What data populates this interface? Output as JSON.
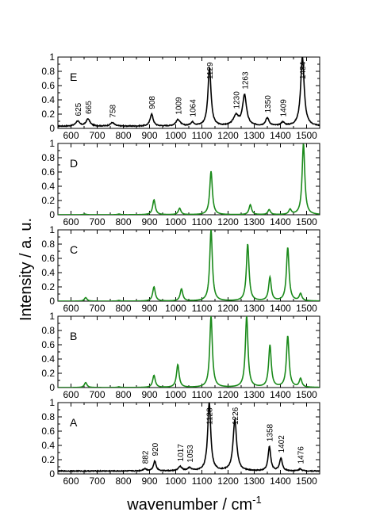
{
  "chart_data": {
    "type": "line",
    "xlabel": "wavenumber / cm",
    "xlabel_superscript": "-1",
    "ylabel": "Intensity / a. u.",
    "xlim": [
      550,
      1550
    ],
    "ylim": [
      0,
      1
    ],
    "x_ticks": [
      600,
      700,
      800,
      900,
      1000,
      1100,
      1200,
      1300,
      1400,
      1500
    ],
    "y_ticks": [
      0,
      0.2,
      0.4,
      0.6,
      0.8,
      1
    ],
    "y_tick_labels": [
      "0",
      "0.2",
      "0.4",
      "0.6",
      "0.8",
      "1"
    ],
    "panels": [
      {
        "label": "E",
        "color": "#000000",
        "baseline": 0.03,
        "noise": 0.006,
        "peaks": [
          {
            "x": 625,
            "h": 0.07,
            "w": 9
          },
          {
            "x": 665,
            "h": 0.1,
            "w": 9
          },
          {
            "x": 758,
            "h": 0.05,
            "w": 9
          },
          {
            "x": 908,
            "h": 0.17,
            "w": 7
          },
          {
            "x": 1009,
            "h": 0.09,
            "w": 10
          },
          {
            "x": 1064,
            "h": 0.05,
            "w": 8
          },
          {
            "x": 1129,
            "h": 0.82,
            "w": 7
          },
          {
            "x": 1230,
            "h": 0.14,
            "w": 12
          },
          {
            "x": 1263,
            "h": 0.43,
            "w": 9
          },
          {
            "x": 1350,
            "h": 0.11,
            "w": 8
          },
          {
            "x": 1409,
            "h": 0.05,
            "w": 8
          },
          {
            "x": 1484,
            "h": 0.97,
            "w": 8
          }
        ],
        "annotations": [
          {
            "x": 625,
            "text": "625"
          },
          {
            "x": 665,
            "text": "665"
          },
          {
            "x": 758,
            "text": "758"
          },
          {
            "x": 908,
            "text": "908"
          },
          {
            "x": 1009,
            "text": "1009"
          },
          {
            "x": 1064,
            "text": "1064"
          },
          {
            "x": 1129,
            "text": "1129"
          },
          {
            "x": 1230,
            "text": "1230"
          },
          {
            "x": 1263,
            "text": "1263"
          },
          {
            "x": 1350,
            "text": "1350"
          },
          {
            "x": 1409,
            "text": "1409"
          },
          {
            "x": 1484,
            "text": "1484"
          }
        ]
      },
      {
        "label": "D",
        "color": "#1a8a1a",
        "baseline": 0,
        "noise": 0,
        "peaks": [
          {
            "x": 653,
            "h": 0.01,
            "w": 6
          },
          {
            "x": 783,
            "h": 0.01,
            "w": 6
          },
          {
            "x": 917,
            "h": 0.21,
            "w": 6
          },
          {
            "x": 1015,
            "h": 0.09,
            "w": 6
          },
          {
            "x": 1135,
            "h": 0.61,
            "w": 6
          },
          {
            "x": 1285,
            "h": 0.14,
            "w": 6
          },
          {
            "x": 1357,
            "h": 0.07,
            "w": 6
          },
          {
            "x": 1437,
            "h": 0.07,
            "w": 6
          },
          {
            "x": 1488,
            "h": 1.0,
            "w": 6
          }
        ],
        "annotations": []
      },
      {
        "label": "C",
        "color": "#1a8a1a",
        "baseline": 0,
        "noise": 0,
        "peaks": [
          {
            "x": 656,
            "h": 0.05,
            "w": 6
          },
          {
            "x": 783,
            "h": 0.01,
            "w": 6
          },
          {
            "x": 917,
            "h": 0.2,
            "w": 6
          },
          {
            "x": 1022,
            "h": 0.17,
            "w": 6
          },
          {
            "x": 1135,
            "h": 1.0,
            "w": 6
          },
          {
            "x": 1275,
            "h": 0.8,
            "w": 6
          },
          {
            "x": 1360,
            "h": 0.33,
            "w": 6
          },
          {
            "x": 1428,
            "h": 0.75,
            "w": 6
          },
          {
            "x": 1477,
            "h": 0.1,
            "w": 6
          }
        ],
        "annotations": []
      },
      {
        "label": "B",
        "color": "#1a8a1a",
        "baseline": 0,
        "noise": 0,
        "peaks": [
          {
            "x": 656,
            "h": 0.07,
            "w": 6
          },
          {
            "x": 783,
            "h": 0.01,
            "w": 6
          },
          {
            "x": 917,
            "h": 0.17,
            "w": 6
          },
          {
            "x": 1008,
            "h": 0.32,
            "w": 6
          },
          {
            "x": 1135,
            "h": 1.0,
            "w": 6
          },
          {
            "x": 1271,
            "h": 1.0,
            "w": 6
          },
          {
            "x": 1360,
            "h": 0.59,
            "w": 6
          },
          {
            "x": 1428,
            "h": 0.72,
            "w": 6
          },
          {
            "x": 1477,
            "h": 0.12,
            "w": 6
          }
        ],
        "annotations": []
      },
      {
        "label": "A",
        "color": "#000000",
        "baseline": 0.04,
        "noise": 0.006,
        "peaks": [
          {
            "x": 882,
            "h": 0.03,
            "w": 8
          },
          {
            "x": 920,
            "h": 0.14,
            "w": 6
          },
          {
            "x": 1017,
            "h": 0.06,
            "w": 8
          },
          {
            "x": 1053,
            "h": 0.04,
            "w": 8
          },
          {
            "x": 1128,
            "h": 0.96,
            "w": 7
          },
          {
            "x": 1226,
            "h": 0.72,
            "w": 8
          },
          {
            "x": 1358,
            "h": 0.34,
            "w": 6
          },
          {
            "x": 1402,
            "h": 0.18,
            "w": 6
          },
          {
            "x": 1476,
            "h": 0.03,
            "w": 6
          }
        ],
        "annotations": [
          {
            "x": 882,
            "text": "882"
          },
          {
            "x": 920,
            "text": "920"
          },
          {
            "x": 1017,
            "text": "1017"
          },
          {
            "x": 1053,
            "text": "1053"
          },
          {
            "x": 1128,
            "text": "1128"
          },
          {
            "x": 1226,
            "text": "1226"
          },
          {
            "x": 1358,
            "text": "1358"
          },
          {
            "x": 1402,
            "text": "1402"
          },
          {
            "x": 1476,
            "text": "1476"
          }
        ]
      }
    ]
  }
}
